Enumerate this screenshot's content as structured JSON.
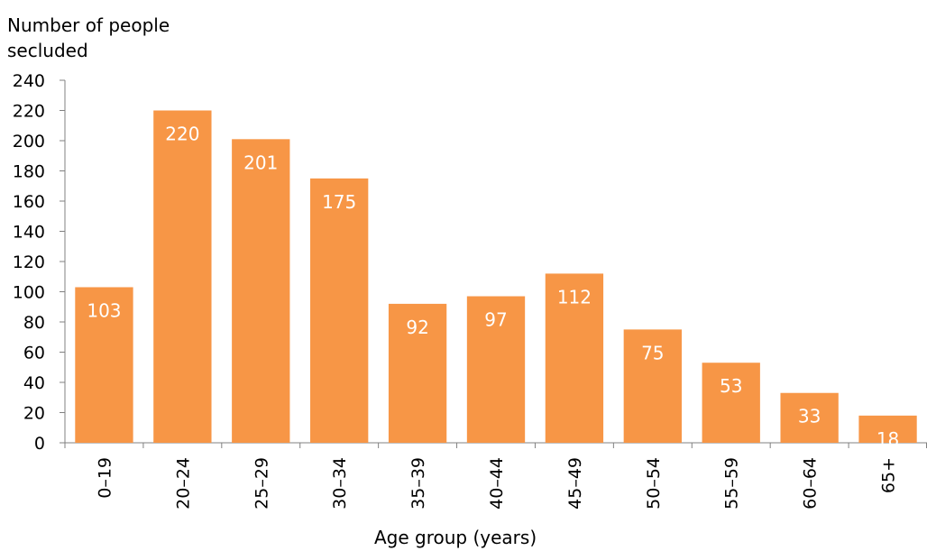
{
  "chart_data": {
    "type": "bar",
    "ylabel": "Number of people\nsecluded",
    "xlabel": "Age group (years)",
    "categories": [
      "0–19",
      "20–24",
      "25–29",
      "30–34",
      "35–39",
      "40–44",
      "45–49",
      "50–54",
      "55–59",
      "60–64",
      "65+"
    ],
    "values": [
      103,
      220,
      201,
      175,
      92,
      97,
      112,
      75,
      53,
      33,
      18
    ],
    "ylim": [
      0,
      240
    ],
    "yticks": [
      0,
      20,
      40,
      60,
      80,
      100,
      120,
      140,
      160,
      180,
      200,
      220,
      240
    ],
    "grid": false,
    "legend": "none",
    "bar_color": "#f79646",
    "label_color": "#ffffff"
  }
}
